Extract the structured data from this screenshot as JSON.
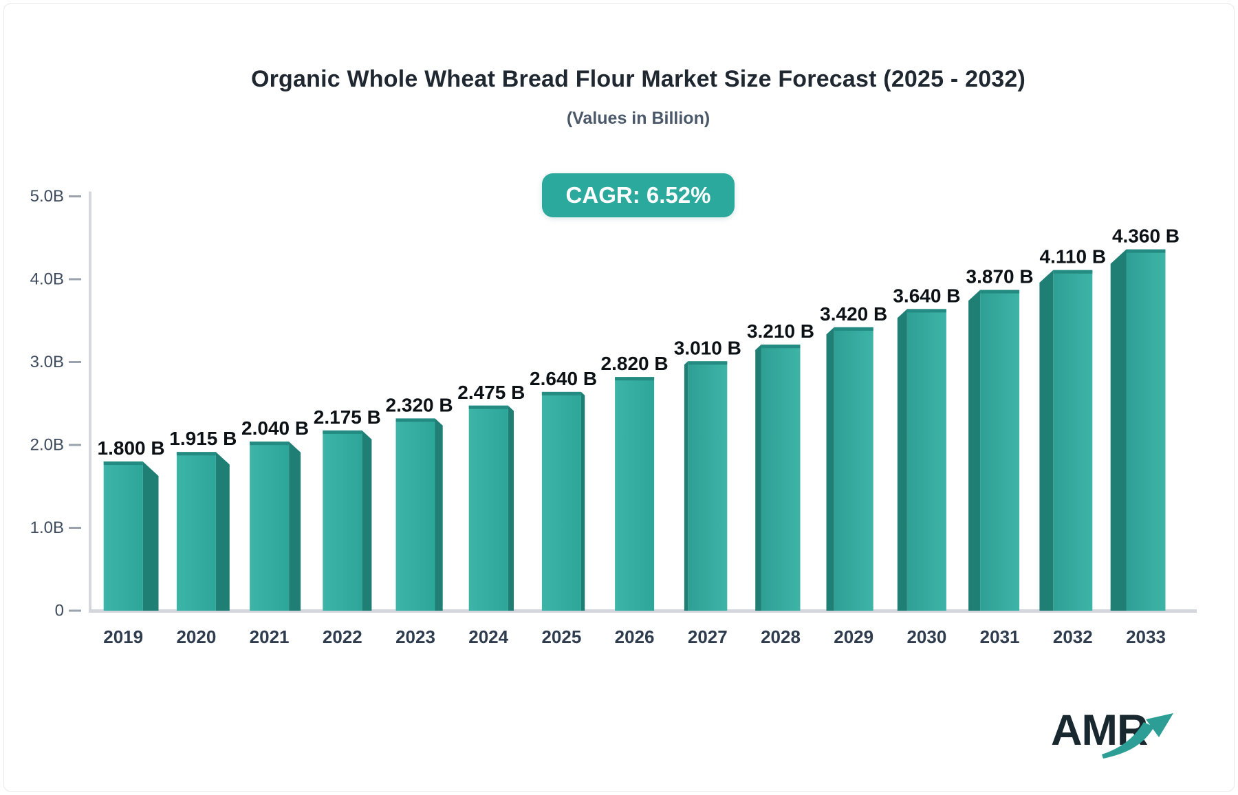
{
  "header": {
    "title": "Organic Whole Wheat Bread Flour Market Size Forecast (2025 - 2032)",
    "subtitle": "(Values in Billion)",
    "badge": "CAGR: 6.52%"
  },
  "footer": {
    "logo_text": "AMR",
    "logo_arrow_icon": "trend-up-arrow"
  },
  "chart_data": {
    "type": "bar",
    "title": "Organic Whole Wheat Bread Flour Market Size Forecast (2025 - 2032)",
    "subtitle": "(Values in Billion)",
    "annotation": "CAGR: 6.52%",
    "unit": "Billion",
    "categories": [
      "2019",
      "2020",
      "2021",
      "2022",
      "2023",
      "2024",
      "2025",
      "2026",
      "2027",
      "2028",
      "2029",
      "2030",
      "2031",
      "2032",
      "2033"
    ],
    "values": [
      1.8,
      1.915,
      2.04,
      2.175,
      2.32,
      2.475,
      2.64,
      2.82,
      3.01,
      3.21,
      3.42,
      3.64,
      3.87,
      4.11,
      4.36
    ],
    "value_labels": [
      "1.800 B",
      "1.915 B",
      "2.040 B",
      "2.175 B",
      "2.320 B",
      "2.475 B",
      "2.640 B",
      "2.820 B",
      "3.010 B",
      "3.210 B",
      "3.420 B",
      "3.640 B",
      "3.870 B",
      "4.110 B",
      "4.360 B"
    ],
    "y_ticks": [
      {
        "label": "5.0B",
        "value": 5.0
      },
      {
        "label": "4.0B",
        "value": 4.0
      },
      {
        "label": "3.0B",
        "value": 3.0
      },
      {
        "label": "2.0B",
        "value": 2.0
      },
      {
        "label": "1.0B",
        "value": 1.0
      },
      {
        "label": "0",
        "value": 0.0
      }
    ],
    "ylim": [
      0,
      5
    ],
    "grid": "ticks-only",
    "legend": "none",
    "colors": {
      "bar_front_light": "#3db4a7",
      "bar_front_base": "#2da69a",
      "bar_front_shade": "#2f9f94",
      "bar_side_dark": "#207f75",
      "bar_top_cap": "#238b81",
      "axis_line": "#d5d7de",
      "tick_dash": "#9aa3ad",
      "y_label": "#3e4c5e",
      "x_label": "#2e3c4e",
      "value_label": "#0c1116",
      "badge_bg": "#2ba99c",
      "badge_text": "#ffffff",
      "title": "#1f2730",
      "subtitle": "#4a5869",
      "logo_dark": "#19282f",
      "logo_teal": "#2c9e96"
    }
  }
}
